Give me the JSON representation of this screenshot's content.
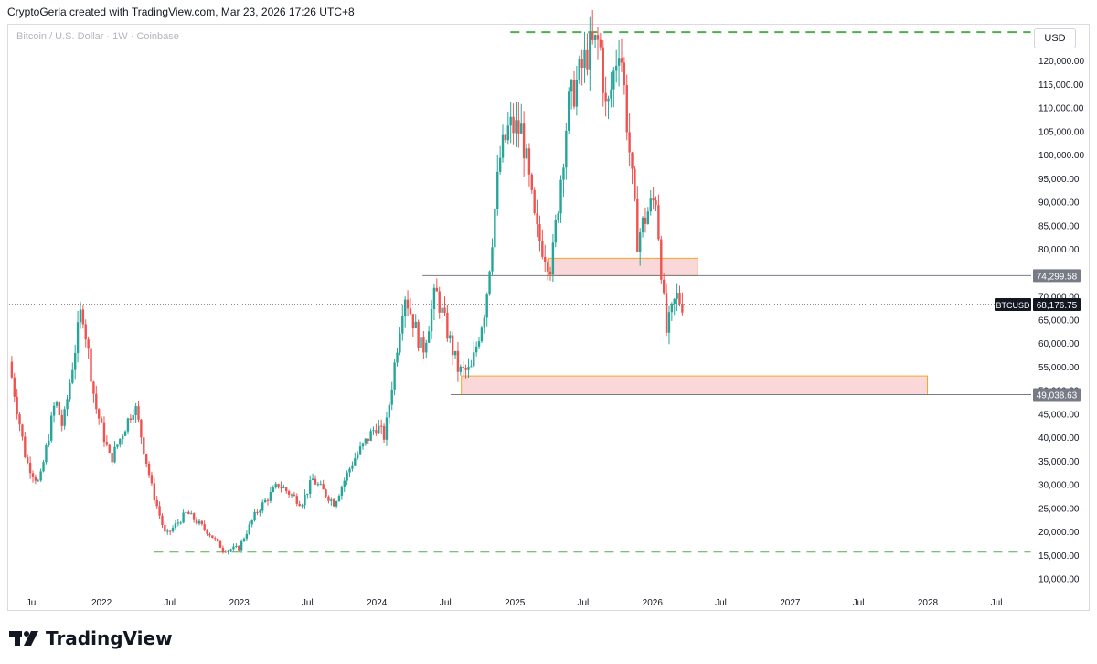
{
  "header": {
    "text": "CryptoGerla created with TradingView.com, Mar 23, 2026 17:26 UTC+8"
  },
  "symbol_line": "Bitcoin / U.S. Dollar · 1W · Coinbase",
  "currency_label": "USD",
  "brand": {
    "name": "TradingView",
    "logo_icon": "tradingview-logo-icon"
  },
  "colors": {
    "up": "#26a69a",
    "down": "#ef5350",
    "zone_fill": "#f8c9cc",
    "zone_border": "#f5a623",
    "dash_green": "#4caf50"
  },
  "chart_data": {
    "type": "candlestick",
    "symbol": "BTCUSD",
    "interval": "1W",
    "exchange": "Coinbase",
    "x_range": [
      "2021-05-01",
      "2028-10-01"
    ],
    "ylim": [
      7000,
      127000
    ],
    "price_ticks": [
      10000,
      15000,
      20000,
      25000,
      30000,
      35000,
      40000,
      45000,
      50000,
      55000,
      60000,
      65000,
      70000,
      75000,
      80000,
      85000,
      90000,
      95000,
      100000,
      105000,
      110000,
      115000,
      120000
    ],
    "price_tick_labels": [
      "10,000.00",
      "15,000.00",
      "20,000.00",
      "25,000.00",
      "30,000.00",
      "35,000.00",
      "40,000.00",
      "45,000.00",
      "50,000.00",
      "55,000.00",
      "60,000.00",
      "65,000.00",
      "70,000.00",
      "75,000.00",
      "80,000.00",
      "85,000.00",
      "90,000.00",
      "95,000.00",
      "100,000.00",
      "105,000.00",
      "110,000.00",
      "115,000.00",
      "120,000.00"
    ],
    "time_ticks": [
      {
        "date": "2021-07-01",
        "label": "Jul"
      },
      {
        "date": "2022-01-01",
        "label": "2022"
      },
      {
        "date": "2022-07-01",
        "label": "Jul"
      },
      {
        "date": "2023-01-01",
        "label": "2023"
      },
      {
        "date": "2023-07-01",
        "label": "Jul"
      },
      {
        "date": "2024-01-01",
        "label": "2024"
      },
      {
        "date": "2024-07-01",
        "label": "Jul"
      },
      {
        "date": "2025-01-01",
        "label": "2025"
      },
      {
        "date": "2025-07-01",
        "label": "Jul"
      },
      {
        "date": "2026-01-01",
        "label": "2026"
      },
      {
        "date": "2026-07-01",
        "label": "Jul"
      },
      {
        "date": "2027-01-01",
        "label": "2027"
      },
      {
        "date": "2027-07-01",
        "label": "Jul"
      },
      {
        "date": "2028-01-01",
        "label": "2028"
      },
      {
        "date": "2028-07-01",
        "label": "Jul"
      }
    ],
    "price_path": [
      {
        "date": "2021-05-01",
        "price": 56000
      },
      {
        "date": "2021-06-15",
        "price": 35000
      },
      {
        "date": "2021-07-20",
        "price": 30000
      },
      {
        "date": "2021-09-01",
        "price": 48000
      },
      {
        "date": "2021-09-20",
        "price": 42000
      },
      {
        "date": "2021-11-10",
        "price": 68000
      },
      {
        "date": "2021-12-15",
        "price": 47000
      },
      {
        "date": "2022-01-25",
        "price": 35000
      },
      {
        "date": "2022-03-30",
        "price": 47000
      },
      {
        "date": "2022-05-15",
        "price": 29000
      },
      {
        "date": "2022-06-20",
        "price": 19000
      },
      {
        "date": "2022-08-15",
        "price": 24000
      },
      {
        "date": "2022-10-15",
        "price": 19500
      },
      {
        "date": "2022-11-21",
        "price": 16000
      },
      {
        "date": "2022-12-31",
        "price": 16500
      },
      {
        "date": "2023-02-15",
        "price": 24000
      },
      {
        "date": "2023-04-15",
        "price": 30000
      },
      {
        "date": "2023-06-15",
        "price": 26000
      },
      {
        "date": "2023-07-15",
        "price": 31000
      },
      {
        "date": "2023-09-10",
        "price": 26000
      },
      {
        "date": "2023-10-30",
        "price": 35000
      },
      {
        "date": "2023-12-31",
        "price": 42500
      },
      {
        "date": "2024-01-22",
        "price": 40000
      },
      {
        "date": "2024-03-14",
        "price": 71000
      },
      {
        "date": "2024-05-01",
        "price": 58000
      },
      {
        "date": "2024-06-05",
        "price": 71000
      },
      {
        "date": "2024-08-05",
        "price": 54000
      },
      {
        "date": "2024-09-06",
        "price": 54000
      },
      {
        "date": "2024-10-15",
        "price": 68000
      },
      {
        "date": "2024-11-22",
        "price": 99000
      },
      {
        "date": "2024-12-17",
        "price": 106000
      },
      {
        "date": "2025-01-20",
        "price": 105000
      },
      {
        "date": "2025-02-25",
        "price": 84000
      },
      {
        "date": "2025-04-08",
        "price": 76000
      },
      {
        "date": "2025-05-22",
        "price": 110000
      },
      {
        "date": "2025-07-14",
        "price": 122000
      },
      {
        "date": "2025-08-14",
        "price": 124000
      },
      {
        "date": "2025-09-01",
        "price": 108000
      },
      {
        "date": "2025-10-06",
        "price": 125000
      },
      {
        "date": "2025-11-21",
        "price": 82000
      },
      {
        "date": "2025-12-20",
        "price": 88000
      },
      {
        "date": "2026-01-10",
        "price": 91000
      },
      {
        "date": "2026-02-06",
        "price": 62000
      },
      {
        "date": "2026-03-05",
        "price": 70000
      },
      {
        "date": "2026-03-23",
        "price": 68176.75
      }
    ],
    "zones": [
      {
        "from": "2025-04-01",
        "to": "2026-05-01",
        "low": 74299.58,
        "high": 78000
      },
      {
        "from": "2024-08-12",
        "to": "2027-12-31",
        "low": 49038.63,
        "high": 53000
      }
    ],
    "support_top_line": {
      "from": "2024-05-01",
      "to": "2026-05-01",
      "price": 74299.58
    },
    "support_bottom_line": {
      "from": "2024-07-15",
      "to": "2027-12-31",
      "price": 49038.63
    },
    "dashed_lines": [
      {
        "from": "2024-12-20",
        "to": "2028-09-30",
        "price": 126000
      },
      {
        "from": "2022-05-20",
        "to": "2028-09-30",
        "price": 15700
      }
    ],
    "current_price_line": {
      "price": 68176.75
    },
    "price_badges": [
      {
        "price": 74299.58,
        "label": "74,299.58"
      },
      {
        "price": 68176.75,
        "label": "68,176.75",
        "tag": "BTCUSD"
      },
      {
        "price": 49038.63,
        "label": "49,038.63"
      }
    ]
  }
}
